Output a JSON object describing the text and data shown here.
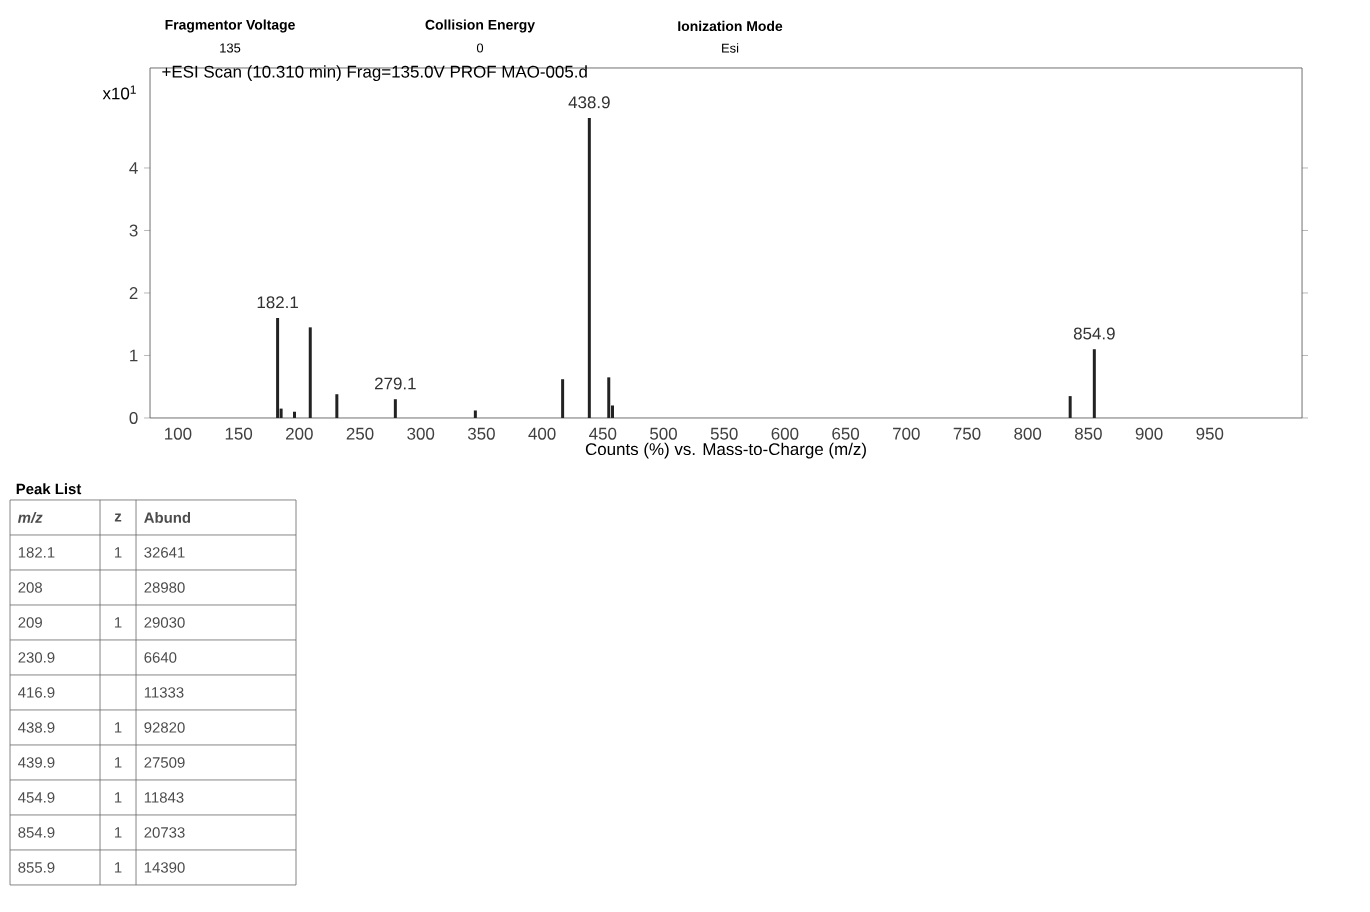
{
  "chart_data": [
    {
      "type": "bar",
      "title": "+ESI Scan (10.310 min) Frag=135.0V PROF MAO-005.d",
      "xlabel": "Counts (%) vs. Mass-to-Charge (m/z)",
      "ylabel": "x10$^{1}$",
      "x": [
        182.1,
        185,
        196,
        209,
        230.9,
        279.1,
        345,
        416.9,
        438.9,
        454.9,
        458,
        835,
        854.9
      ],
      "values": [
        1.6,
        0.15,
        0.1,
        1.45,
        0.38,
        0.3,
        0.12,
        0.62,
        4.8,
        0.65,
        0.2,
        0.35,
        1.1
      ],
      "color": "#222222",
      "xlim": [
        77,
        1026
      ],
      "ylim": [
        0,
        5.6
      ],
      "xticks": [
        100,
        150,
        200,
        250,
        300,
        350,
        400,
        450,
        500,
        550,
        600,
        650,
        700,
        750,
        800,
        850,
        900,
        950
      ],
      "yticks": [
        0,
        1,
        2,
        3,
        4
      ],
      "annotations": [
        "Fragmentor Voltage",
        "135",
        "Collision Energy",
        "0",
        "Ionization Mode",
        "Esi",
        {
          "text": "182.1",
          "x": 182.1,
          "y": 1.6
        },
        {
          "text": "279.1",
          "x": 279.1,
          "y": 0.3
        },
        {
          "text": "438.9",
          "x": 438.9,
          "y": 4.8
        },
        {
          "text": "854.9",
          "x": 854.9,
          "y": 1.1
        }
      ]
    },
    {
      "type": "other",
      "title": "Peak List",
      "categories": [
        "*m/z*",
        "z",
        "Abund"
      ],
      "cell_labels": [
        [
          "182.1",
          "1",
          "32641"
        ],
        [
          "208",
          null,
          "28980"
        ],
        [
          "209",
          "1",
          "29030"
        ],
        [
          "230.9",
          null,
          "6640"
        ],
        [
          "416.9",
          null,
          "11333"
        ],
        [
          "438.9",
          "1",
          "92820"
        ],
        [
          "439.9",
          "1",
          "27509"
        ],
        [
          "454.9",
          "1",
          "11843"
        ],
        [
          "854.9",
          "1",
          "20733"
        ],
        [
          "855.9",
          "1",
          "14390"
        ]
      ]
    }
  ]
}
